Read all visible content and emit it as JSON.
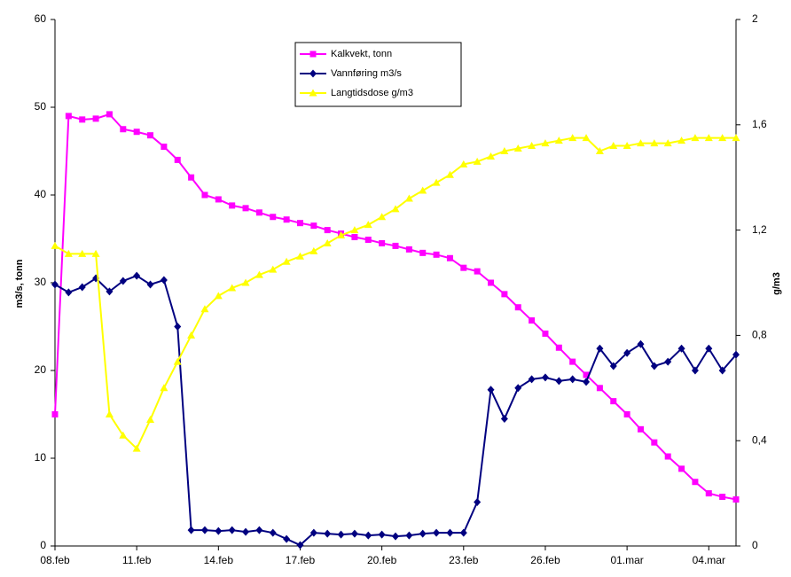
{
  "chart_data": {
    "type": "line",
    "y_label": "m3/s, tonn",
    "y2_label": "g/m3",
    "x": [
      0,
      0.5,
      1,
      1.5,
      2,
      2.5,
      3,
      3.5,
      4,
      4.5,
      5,
      5.5,
      6,
      6.5,
      7,
      7.5,
      8,
      8.5,
      9,
      9.5,
      10,
      10.5,
      11,
      11.5,
      12,
      12.5,
      13,
      13.5,
      14,
      14.5,
      15,
      15.5,
      16,
      16.5,
      17,
      17.5,
      18,
      18.5,
      19,
      19.5,
      20,
      20.5,
      21,
      21.5,
      22,
      22.5,
      23,
      23.5,
      24,
      24.5,
      25
    ],
    "xlim": [
      0,
      25
    ],
    "xticks": [
      {
        "value": 0,
        "label": "08.feb"
      },
      {
        "value": 3,
        "label": "11.feb"
      },
      {
        "value": 6,
        "label": "14.feb"
      },
      {
        "value": 9,
        "label": "17.feb"
      },
      {
        "value": 12,
        "label": "20.feb"
      },
      {
        "value": 15,
        "label": "23.feb"
      },
      {
        "value": 18,
        "label": "26.feb"
      },
      {
        "value": 21,
        "label": "01.mar"
      },
      {
        "value": 24,
        "label": "04.mar"
      }
    ],
    "ylim": [
      0,
      60
    ],
    "yticks": [
      0,
      10,
      20,
      30,
      40,
      50,
      60
    ],
    "y2lim": [
      0,
      2
    ],
    "y2ticks": [
      0,
      {
        "value": 0.4,
        "label": "0,4"
      },
      {
        "value": 0.8,
        "label": "0,8"
      },
      {
        "value": 1.2,
        "label": "1,2"
      },
      {
        "value": 1.6,
        "label": "1,6"
      },
      2
    ],
    "legend": "top",
    "series": [
      {
        "name": "Kalkvekt, tonn",
        "color": "#ff00ff",
        "marker": "square",
        "values": [
          15,
          49,
          48.6,
          48.7,
          49.2,
          47.5,
          47.2,
          46.8,
          45.5,
          44,
          42,
          40,
          39.5,
          38.8,
          38.5,
          38,
          37.5,
          37.2,
          36.8,
          36.5,
          36,
          35.6,
          35.2,
          34.9,
          34.5,
          34.2,
          33.8,
          33.4,
          33.2,
          32.8,
          31.7,
          31.3,
          30,
          28.7,
          27.2,
          25.7,
          24.2,
          22.6,
          21,
          19.5,
          18,
          16.5,
          15,
          13.3,
          11.8,
          10.2,
          8.8,
          7.3,
          6,
          5.6,
          5.3
        ]
      },
      {
        "name": "Vannføring m3/s",
        "color": "#000080",
        "marker": "diamond",
        "values": [
          29.8,
          28.9,
          29.5,
          30.5,
          29,
          30.2,
          30.8,
          29.8,
          30.3,
          25,
          1.8,
          1.8,
          1.7,
          1.8,
          1.6,
          1.8,
          1.5,
          0.8,
          0.1,
          1.5,
          1.4,
          1.3,
          1.4,
          1.2,
          1.3,
          1.1,
          1.2,
          1.4,
          1.5,
          1.5,
          1.5,
          5,
          17.8,
          14.5,
          18,
          19,
          19.2,
          18.8,
          19,
          18.7,
          22.5,
          20.5,
          22,
          23,
          20.5,
          21,
          22.5,
          20,
          22.5,
          20,
          21.8
        ]
      },
      {
        "name": "Langtidsdose g/m3",
        "color": "#ffff00",
        "marker": "triangle",
        "axis": "y2",
        "values": [
          1.14,
          1.11,
          1.11,
          1.11,
          0.5,
          0.42,
          0.37,
          0.48,
          0.6,
          0.7,
          0.8,
          0.9,
          0.95,
          0.98,
          1.0,
          1.03,
          1.05,
          1.08,
          1.1,
          1.12,
          1.15,
          1.18,
          1.2,
          1.22,
          1.25,
          1.28,
          1.32,
          1.35,
          1.38,
          1.41,
          1.45,
          1.46,
          1.48,
          1.5,
          1.51,
          1.52,
          1.53,
          1.54,
          1.55,
          1.55,
          1.5,
          1.52,
          1.52,
          1.53,
          1.53,
          1.53,
          1.54,
          1.55,
          1.55,
          1.55,
          1.55
        ]
      }
    ]
  }
}
